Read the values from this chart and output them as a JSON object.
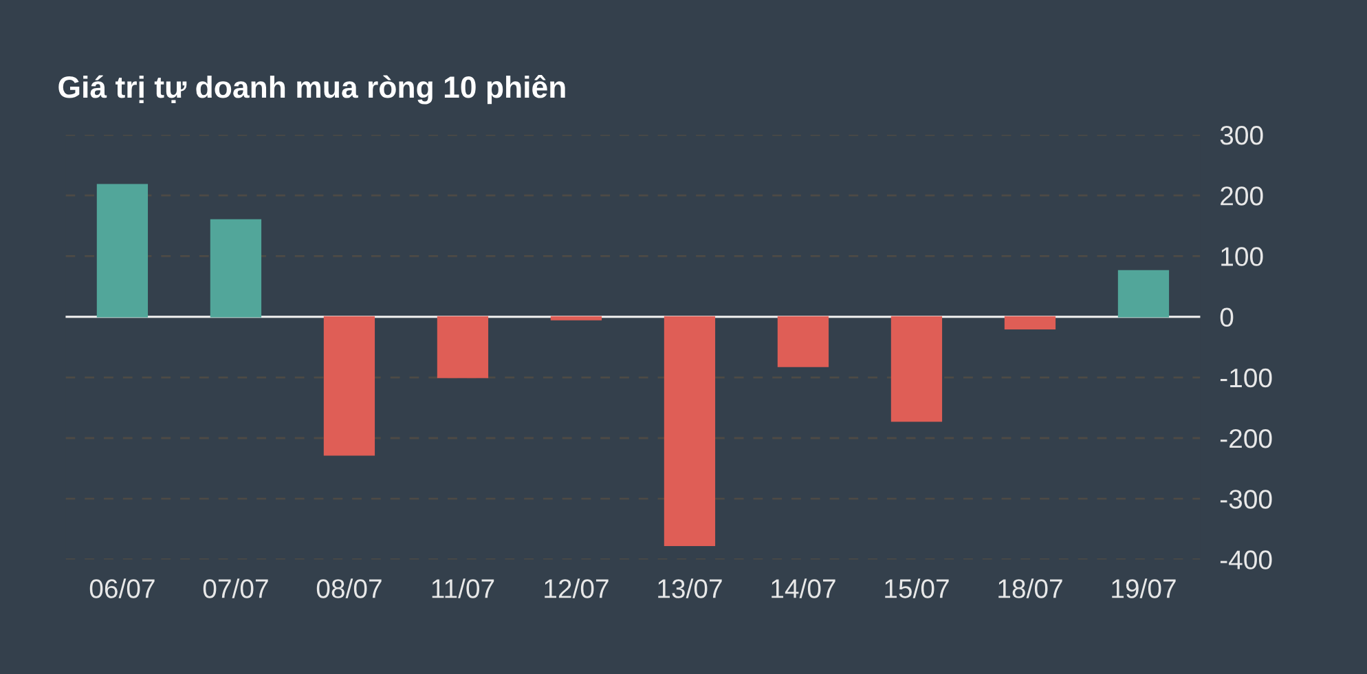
{
  "chart_data": {
    "type": "bar",
    "title": "Giá trị tự doanh mua ròng 10 phiên",
    "categories": [
      "06/07",
      "07/07",
      "08/07",
      "11/07",
      "12/07",
      "13/07",
      "14/07",
      "15/07",
      "18/07",
      "19/07"
    ],
    "values": [
      218,
      160,
      -228,
      -100,
      -5,
      -377,
      -82,
      -172,
      -20,
      76
    ],
    "colors": [
      "#52a69a",
      "#52a69a",
      "#df5e56",
      "#df5e56",
      "#df5e56",
      "#df5e56",
      "#df5e56",
      "#df5e56",
      "#df5e56",
      "#52a69a"
    ],
    "ylim": [
      -400,
      300
    ],
    "yticks": [
      -400,
      -300,
      -200,
      -100,
      0,
      100,
      200,
      300
    ],
    "ref_lines": [
      {
        "axis": "y",
        "value": 0,
        "color": "#e6e6e6"
      }
    ],
    "grid": "y"
  }
}
